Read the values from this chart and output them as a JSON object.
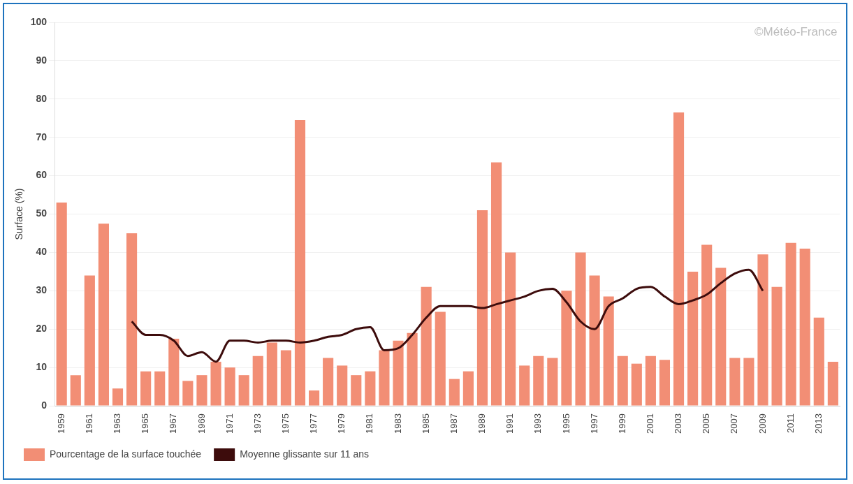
{
  "chart_data": {
    "type": "bar",
    "ylabel": "Surface (%)",
    "categories": [
      "1959",
      null,
      "1961",
      null,
      "1963",
      null,
      "1965",
      null,
      "1967",
      null,
      "1969",
      null,
      "1971",
      null,
      "1973",
      null,
      "1975",
      null,
      "1977",
      null,
      "1979",
      null,
      "1981",
      null,
      "1983",
      null,
      "1985",
      null,
      "1987",
      null,
      "1989",
      null,
      "1991",
      null,
      "1993",
      null,
      "1995",
      null,
      "1997",
      null,
      "1999",
      null,
      "2001",
      null,
      "2003",
      null,
      "2005",
      null,
      "2007",
      null,
      "2009",
      null,
      "2011",
      null,
      "2013",
      null
    ],
    "series": [
      {
        "name": "Pourcentage de la surface touchée",
        "color": "#f28e75",
        "values": [
          53,
          8,
          34,
          47.5,
          4.5,
          45,
          9,
          9,
          17.5,
          6.5,
          8,
          11.5,
          10,
          8,
          13,
          16.5,
          14.5,
          74.5,
          4,
          12.5,
          10.5,
          8,
          9,
          14.5,
          17,
          19,
          31,
          24.5,
          7,
          9,
          51,
          63.5,
          40,
          10.5,
          13,
          12.5,
          30,
          40,
          34,
          28.5,
          13,
          11,
          13,
          12,
          76.5,
          35,
          42,
          36,
          12.5,
          12.5,
          39.5,
          31,
          42.5,
          41,
          23,
          11.5
        ]
      },
      {
        "name": "Moyenne glissante sur 11 ans",
        "type": "line",
        "color": "#3d0c0c",
        "values": [
          null,
          null,
          null,
          null,
          null,
          22,
          18.5,
          18.5,
          17,
          13,
          14,
          11.5,
          17,
          17,
          16.5,
          17,
          17,
          16.5,
          17,
          18,
          18.5,
          20,
          20.5,
          14.5,
          15,
          18.5,
          23,
          26,
          26,
          26,
          25.5,
          26.5,
          27.5,
          28.5,
          30,
          30.5,
          27,
          22,
          20,
          26,
          28,
          30.5,
          31,
          28.5,
          26.5,
          27.5,
          29,
          32,
          34.5,
          35.5,
          30,
          null,
          null,
          null,
          null,
          null
        ]
      }
    ],
    "ylim": [
      0,
      100
    ],
    "yticks": [
      0,
      10,
      20,
      30,
      40,
      50,
      60,
      70,
      80,
      90,
      100
    ],
    "grid": "y",
    "legend": "bottom",
    "marker": "none",
    "line_style": "solid",
    "annotations": [
      "©Météo-France"
    ]
  }
}
